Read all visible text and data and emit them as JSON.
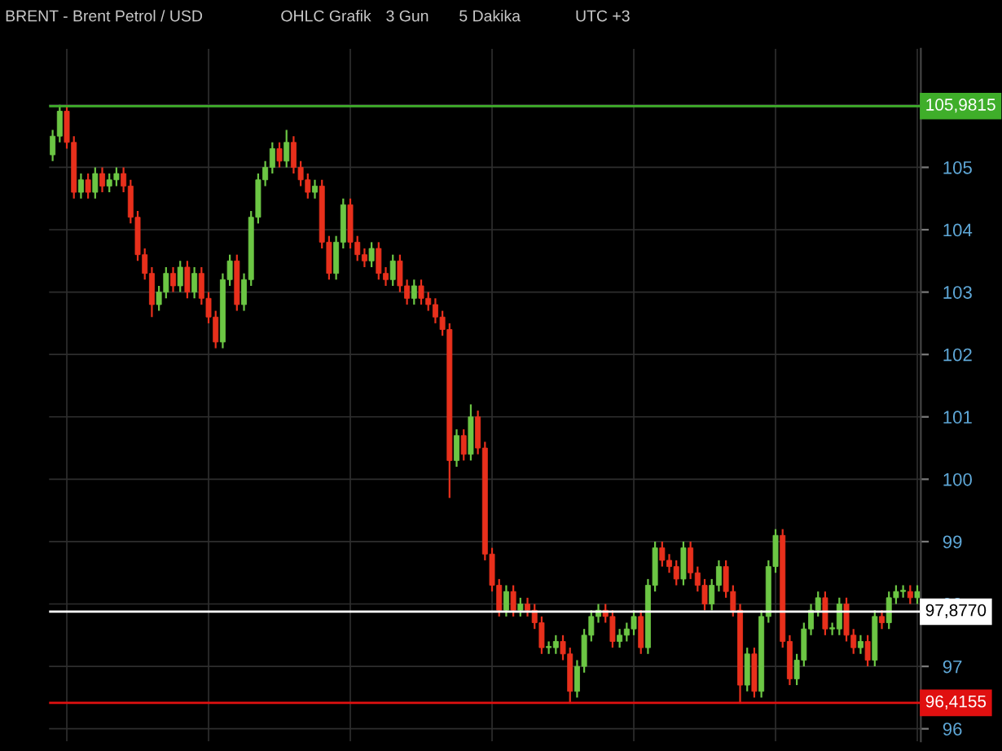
{
  "chart_data": {
    "type": "candlestick",
    "title": "BRENT - Brent Petrol / USD",
    "annotations": [
      "OHLC Grafik",
      "3 Gun",
      "5 Dakika",
      "UTC +3"
    ],
    "categories": [
      null,
      null,
      null,
      null,
      null,
      null,
      null,
      null,
      null,
      null,
      null,
      null,
      null,
      null,
      null,
      null,
      null,
      null,
      null,
      null,
      null,
      null,
      null,
      null,
      null,
      null,
      null,
      null,
      null,
      null,
      null,
      null,
      null,
      null,
      null,
      null,
      null,
      null,
      null,
      null,
      null,
      null,
      null,
      null,
      null,
      null,
      null,
      null,
      null,
      null,
      null,
      null,
      null,
      null,
      null,
      null,
      null,
      null,
      null,
      null,
      null,
      null,
      null,
      null,
      null,
      null,
      null,
      null,
      null,
      null,
      null,
      null,
      null,
      null,
      null,
      null,
      null,
      null,
      null,
      null,
      null,
      null,
      null,
      null,
      null,
      null,
      null,
      null,
      null,
      null,
      null,
      null,
      null,
      null,
      null,
      null,
      null,
      null,
      null,
      null,
      null,
      null,
      null,
      null,
      null,
      null,
      null,
      null,
      null,
      null,
      null,
      null,
      null,
      null,
      null,
      null,
      null,
      null,
      null,
      null,
      null,
      null,
      null
    ],
    "ohlc": [
      [
        105.2,
        105.6,
        105.1,
        105.5
      ],
      [
        105.5,
        106.0,
        105.4,
        105.9
      ],
      [
        105.9,
        106.0,
        105.3,
        105.4
      ],
      [
        105.4,
        105.5,
        104.5,
        104.6
      ],
      [
        104.6,
        104.9,
        104.5,
        104.8
      ],
      [
        104.8,
        104.9,
        104.5,
        104.6
      ],
      [
        104.6,
        105.0,
        104.5,
        104.9
      ],
      [
        104.9,
        105.0,
        104.6,
        104.7
      ],
      [
        104.7,
        104.9,
        104.6,
        104.8
      ],
      [
        104.8,
        105.0,
        104.7,
        104.9
      ],
      [
        104.9,
        105.0,
        104.6,
        104.7
      ],
      [
        104.7,
        104.8,
        104.1,
        104.2
      ],
      [
        104.2,
        104.3,
        103.5,
        103.6
      ],
      [
        103.6,
        103.7,
        103.2,
        103.3
      ],
      [
        103.3,
        103.4,
        102.6,
        102.8
      ],
      [
        102.8,
        103.1,
        102.7,
        103.0
      ],
      [
        103.0,
        103.4,
        102.9,
        103.3
      ],
      [
        103.3,
        103.4,
        103.0,
        103.1
      ],
      [
        103.1,
        103.5,
        103.0,
        103.4
      ],
      [
        103.4,
        103.5,
        102.9,
        103.0
      ],
      [
        103.0,
        103.4,
        102.9,
        103.3
      ],
      [
        103.3,
        103.4,
        102.8,
        102.9
      ],
      [
        102.9,
        103.0,
        102.5,
        102.6
      ],
      [
        102.6,
        102.7,
        102.1,
        102.2
      ],
      [
        102.2,
        103.3,
        102.1,
        103.2
      ],
      [
        103.2,
        103.6,
        103.1,
        103.5
      ],
      [
        103.5,
        103.6,
        102.7,
        102.8
      ],
      [
        102.8,
        103.3,
        102.7,
        103.2
      ],
      [
        103.2,
        104.3,
        103.1,
        104.2
      ],
      [
        104.2,
        104.9,
        104.1,
        104.8
      ],
      [
        104.8,
        105.1,
        104.7,
        105.0
      ],
      [
        105.0,
        105.4,
        104.9,
        105.3
      ],
      [
        105.3,
        105.4,
        105.0,
        105.1
      ],
      [
        105.1,
        105.6,
        105.0,
        105.4
      ],
      [
        105.4,
        105.5,
        104.9,
        105.0
      ],
      [
        105.0,
        105.1,
        104.7,
        104.8
      ],
      [
        104.8,
        104.9,
        104.5,
        104.6
      ],
      [
        104.6,
        104.8,
        104.5,
        104.7
      ],
      [
        104.7,
        104.8,
        103.7,
        103.8
      ],
      [
        103.8,
        103.9,
        103.2,
        103.3
      ],
      [
        103.3,
        103.9,
        103.2,
        103.8
      ],
      [
        103.8,
        104.5,
        103.7,
        104.4
      ],
      [
        104.4,
        104.5,
        103.7,
        103.8
      ],
      [
        103.8,
        103.9,
        103.5,
        103.6
      ],
      [
        103.6,
        103.7,
        103.4,
        103.5
      ],
      [
        103.5,
        103.8,
        103.4,
        103.7
      ],
      [
        103.7,
        103.8,
        103.2,
        103.3
      ],
      [
        103.3,
        103.4,
        103.1,
        103.2
      ],
      [
        103.2,
        103.6,
        103.1,
        103.5
      ],
      [
        103.5,
        103.6,
        103.0,
        103.1
      ],
      [
        103.1,
        103.2,
        102.8,
        102.9
      ],
      [
        102.9,
        103.2,
        102.8,
        103.1
      ],
      [
        103.1,
        103.2,
        102.8,
        102.9
      ],
      [
        102.9,
        103.0,
        102.7,
        102.8
      ],
      [
        102.8,
        102.9,
        102.5,
        102.6
      ],
      [
        102.6,
        102.7,
        102.3,
        102.4
      ],
      [
        102.4,
        102.5,
        99.7,
        100.3
      ],
      [
        100.3,
        100.8,
        100.2,
        100.7
      ],
      [
        100.7,
        100.8,
        100.3,
        100.4
      ],
      [
        100.4,
        101.2,
        100.3,
        101.0
      ],
      [
        101.0,
        101.1,
        100.4,
        100.5
      ],
      [
        100.5,
        100.6,
        98.7,
        98.8
      ],
      [
        98.8,
        98.9,
        98.2,
        98.3
      ],
      [
        98.3,
        98.4,
        97.8,
        97.9
      ],
      [
        97.9,
        98.3,
        97.8,
        98.2
      ],
      [
        98.2,
        98.3,
        97.8,
        97.9
      ],
      [
        97.9,
        98.1,
        97.8,
        98.0
      ],
      [
        98.0,
        98.1,
        97.8,
        97.9
      ],
      [
        97.9,
        98.0,
        97.6,
        97.7
      ],
      [
        97.7,
        97.8,
        97.2,
        97.3
      ],
      [
        97.3,
        97.4,
        97.2,
        97.3
      ],
      [
        97.3,
        97.5,
        97.2,
        97.4
      ],
      [
        97.4,
        97.5,
        97.1,
        97.2
      ],
      [
        97.2,
        97.3,
        96.4,
        96.6
      ],
      [
        96.6,
        97.1,
        96.5,
        97.0
      ],
      [
        97.0,
        97.6,
        96.9,
        97.5
      ],
      [
        97.5,
        97.9,
        97.4,
        97.8
      ],
      [
        97.8,
        98.0,
        97.7,
        97.9
      ],
      [
        97.9,
        98.0,
        97.7,
        97.8
      ],
      [
        97.8,
        97.9,
        97.3,
        97.4
      ],
      [
        97.4,
        97.6,
        97.3,
        97.5
      ],
      [
        97.5,
        97.7,
        97.4,
        97.6
      ],
      [
        97.6,
        97.9,
        97.5,
        97.8
      ],
      [
        97.8,
        97.9,
        97.2,
        97.3
      ],
      [
        97.3,
        98.4,
        97.2,
        98.3
      ],
      [
        98.3,
        99.0,
        98.2,
        98.9
      ],
      [
        98.9,
        99.0,
        98.6,
        98.7
      ],
      [
        98.7,
        98.8,
        98.5,
        98.6
      ],
      [
        98.6,
        98.7,
        98.3,
        98.4
      ],
      [
        98.4,
        99.0,
        98.3,
        98.9
      ],
      [
        98.9,
        99.0,
        98.4,
        98.5
      ],
      [
        98.5,
        98.6,
        98.2,
        98.3
      ],
      [
        98.3,
        98.4,
        97.9,
        98.0
      ],
      [
        98.0,
        98.4,
        97.9,
        98.3
      ],
      [
        98.3,
        98.7,
        98.2,
        98.6
      ],
      [
        98.6,
        98.7,
        98.1,
        98.2
      ],
      [
        98.2,
        98.3,
        97.8,
        97.9
      ],
      [
        97.9,
        98.0,
        96.4,
        96.7
      ],
      [
        96.7,
        97.3,
        96.6,
        97.2
      ],
      [
        97.2,
        97.3,
        96.5,
        96.6
      ],
      [
        96.6,
        97.9,
        96.5,
        97.8
      ],
      [
        97.8,
        98.7,
        97.7,
        98.6
      ],
      [
        98.6,
        99.2,
        98.5,
        99.1
      ],
      [
        99.1,
        99.2,
        97.3,
        97.4
      ],
      [
        97.4,
        97.5,
        96.7,
        96.8
      ],
      [
        96.8,
        97.2,
        96.7,
        97.1
      ],
      [
        97.1,
        97.7,
        97.0,
        97.6
      ],
      [
        97.6,
        98.0,
        97.5,
        97.9
      ],
      [
        97.9,
        98.2,
        97.8,
        98.1
      ],
      [
        98.1,
        98.2,
        97.5,
        97.6
      ],
      [
        97.6,
        97.7,
        97.5,
        97.6
      ],
      [
        97.6,
        98.1,
        97.5,
        98.0
      ],
      [
        98.0,
        98.1,
        97.4,
        97.5
      ],
      [
        97.5,
        97.6,
        97.2,
        97.3
      ],
      [
        97.3,
        97.5,
        97.2,
        97.4
      ],
      [
        97.4,
        97.5,
        97.0,
        97.1
      ],
      [
        97.1,
        97.9,
        97.0,
        97.8
      ],
      [
        97.8,
        97.9,
        97.6,
        97.7
      ],
      [
        97.7,
        98.2,
        97.6,
        98.1
      ],
      [
        98.1,
        98.3,
        98.0,
        98.2
      ],
      [
        98.2,
        98.3,
        98.1,
        98.2
      ],
      [
        98.2,
        98.3,
        98.0,
        98.1
      ],
      [
        98.1,
        98.3,
        98.0,
        98.2
      ]
    ],
    "colors": [
      "#6cc644",
      "#6cc644",
      "#e8301c",
      "#e8301c",
      "#6cc644",
      "#e8301c",
      "#6cc644",
      "#e8301c",
      "#6cc644",
      "#6cc644",
      "#e8301c",
      "#e8301c",
      "#e8301c",
      "#e8301c",
      "#e8301c",
      "#6cc644",
      "#6cc644",
      "#e8301c",
      "#6cc644",
      "#e8301c",
      "#6cc644",
      "#e8301c",
      "#e8301c",
      "#e8301c",
      "#6cc644",
      "#6cc644",
      "#e8301c",
      "#6cc644",
      "#6cc644",
      "#6cc644",
      "#6cc644",
      "#6cc644",
      "#e8301c",
      "#6cc644",
      "#e8301c",
      "#e8301c",
      "#e8301c",
      "#6cc644",
      "#e8301c",
      "#e8301c",
      "#6cc644",
      "#6cc644",
      "#e8301c",
      "#e8301c",
      "#e8301c",
      "#6cc644",
      "#e8301c",
      "#e8301c",
      "#6cc644",
      "#e8301c",
      "#e8301c",
      "#6cc644",
      "#e8301c",
      "#e8301c",
      "#e8301c",
      "#e8301c",
      "#e8301c",
      "#6cc644",
      "#e8301c",
      "#6cc644",
      "#e8301c",
      "#e8301c",
      "#e8301c",
      "#e8301c",
      "#6cc644",
      "#e8301c",
      "#6cc644",
      "#e8301c",
      "#e8301c",
      "#e8301c",
      "#6cc644",
      "#6cc644",
      "#e8301c",
      "#e8301c",
      "#6cc644",
      "#6cc644",
      "#6cc644",
      "#6cc644",
      "#e8301c",
      "#e8301c",
      "#6cc644",
      "#6cc644",
      "#6cc644",
      "#e8301c",
      "#6cc644",
      "#6cc644",
      "#e8301c",
      "#e8301c",
      "#e8301c",
      "#6cc644",
      "#e8301c",
      "#e8301c",
      "#e8301c",
      "#6cc644",
      "#6cc644",
      "#e8301c",
      "#e8301c",
      "#e8301c",
      "#6cc644",
      "#e8301c",
      "#6cc644",
      "#6cc644",
      "#6cc644",
      "#e8301c",
      "#e8301c",
      "#6cc644",
      "#6cc644",
      "#6cc644",
      "#6cc644",
      "#e8301c",
      "#6cc644",
      "#6cc644",
      "#e8301c",
      "#e8301c",
      "#6cc644",
      "#e8301c",
      "#6cc644",
      "#e8301c",
      "#6cc644",
      "#6cc644",
      "#6cc644",
      "#e8301c",
      "#6cc644"
    ],
    "ylim": [
      95.8,
      106.9
    ],
    "yticks": [
      96,
      97,
      98,
      99,
      100,
      101,
      102,
      103,
      104,
      105,
      {
        "value": 106,
        "label": null
      }
    ],
    "grid": true,
    "ref_lines": [
      {
        "axis": "y",
        "value": 105.9815,
        "label": "105,9815",
        "color": "#3fae2a"
      },
      {
        "axis": "y",
        "value": 97.877,
        "label": "97,8770",
        "color": "#ffffff"
      },
      {
        "axis": "y",
        "value": 96.4155,
        "label": "96,4155",
        "color": "#e01010"
      }
    ]
  }
}
